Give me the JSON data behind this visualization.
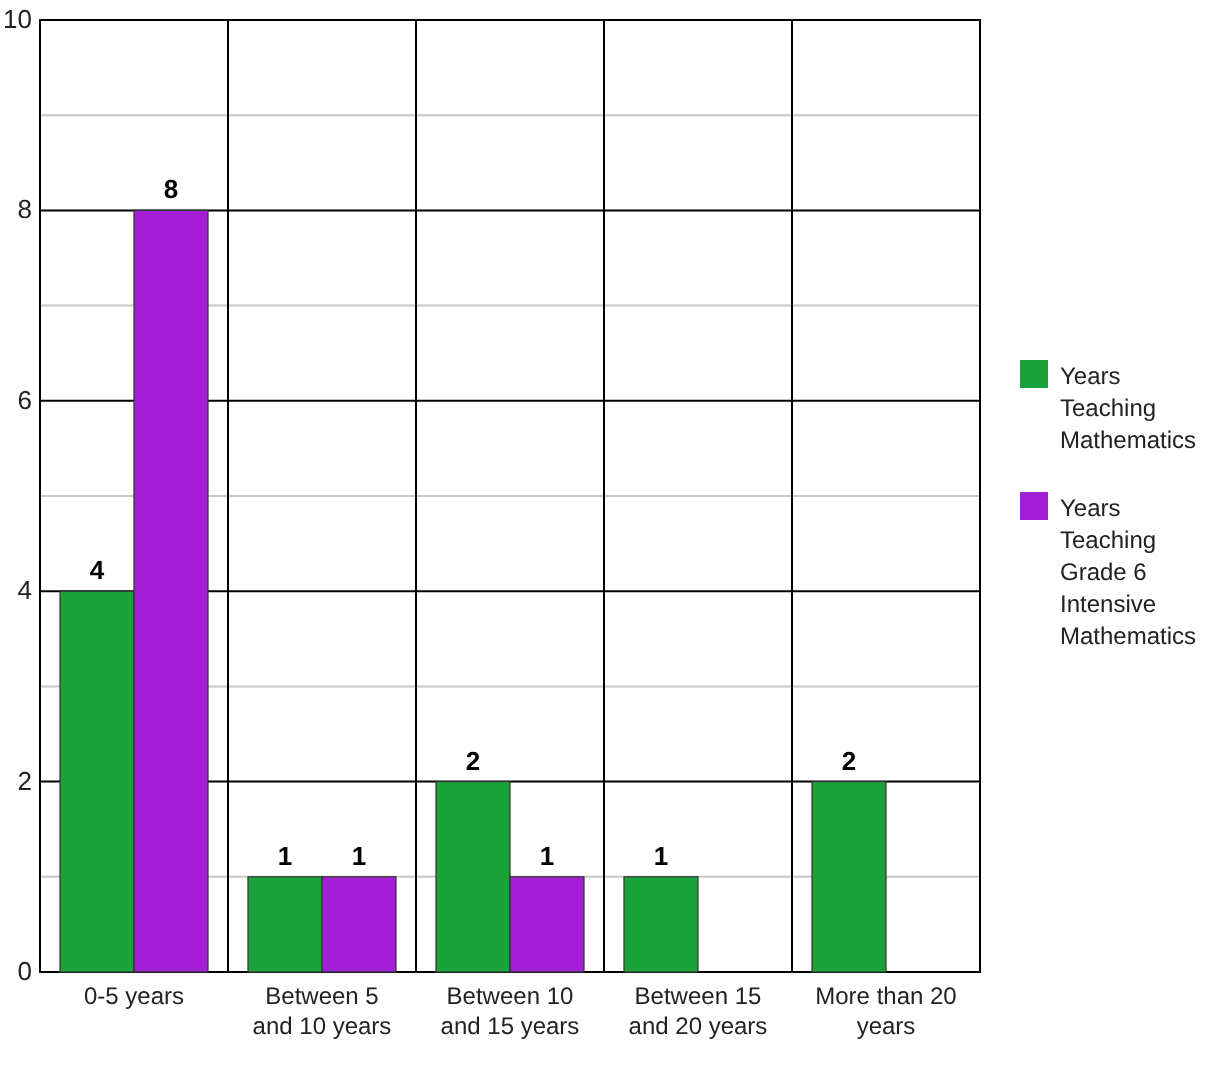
{
  "chart_data": {
    "type": "bar",
    "categories": [
      "0-5 years",
      "Between 5 and 10 years",
      "Between 10 and 15 years",
      "Between 15 and 20 years",
      "More than 20 years"
    ],
    "series": [
      {
        "name": "Years Teaching Mathematics",
        "color": "#1aa33a",
        "values": [
          4,
          1,
          2,
          1,
          2
        ]
      },
      {
        "name": "Years Teaching Grade 6 Intensive Mathematics",
        "color": "#a21fd6",
        "values": [
          8,
          1,
          1,
          null,
          null
        ]
      }
    ],
    "ylim": [
      0,
      10
    ],
    "yticks": [
      0,
      {
        "value": 1,
        "label": null
      },
      2,
      {
        "value": 3,
        "label": null
      },
      4,
      {
        "value": 5,
        "label": null
      },
      6,
      {
        "value": 7,
        "label": null
      },
      8,
      {
        "value": 9,
        "label": null
      },
      10
    ],
    "grid": true,
    "data_labels": true,
    "legend": "right"
  }
}
